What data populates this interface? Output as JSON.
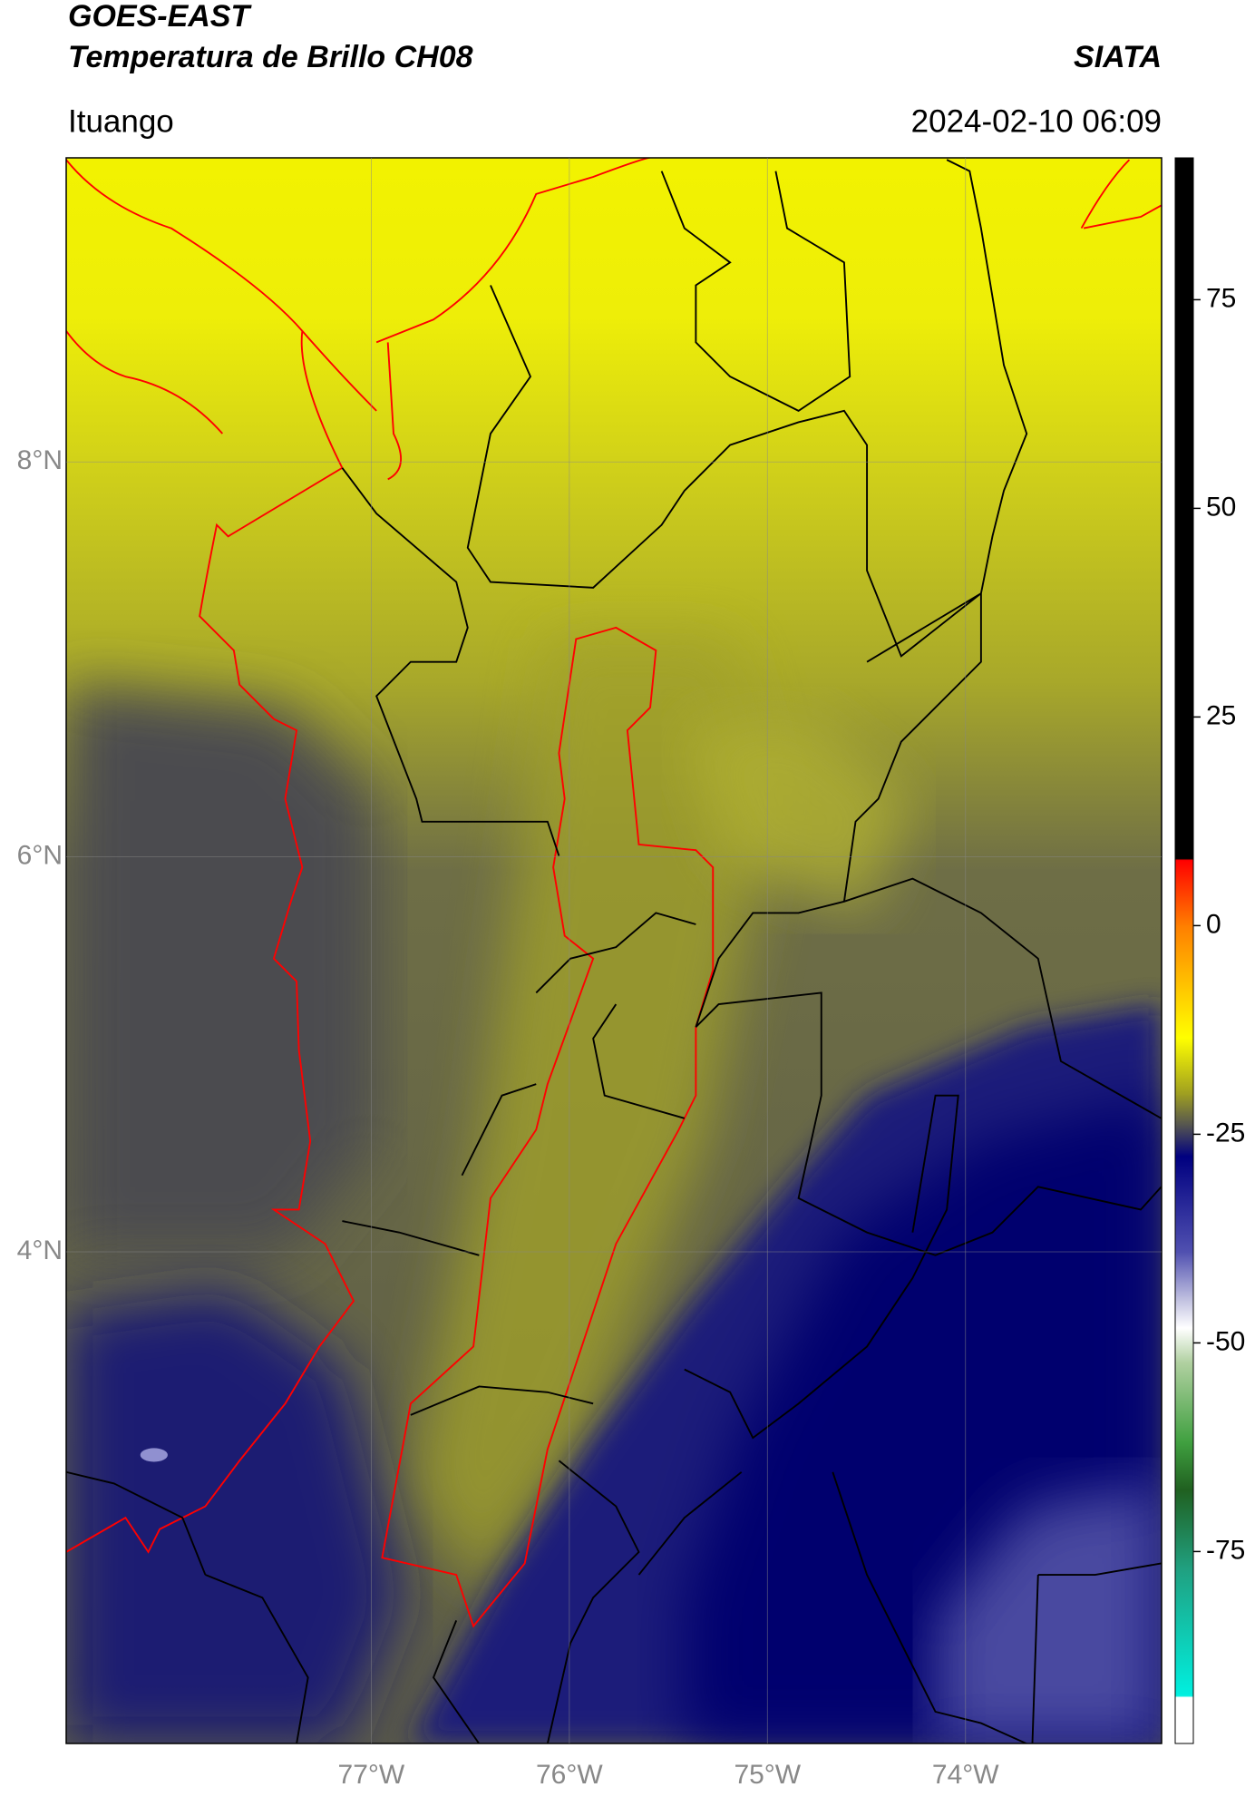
{
  "header": {
    "title": "GOES-EAST",
    "subtitle": "Temperatura de Brillo CH08",
    "source": "SIATA",
    "location": "Ituango",
    "datetime": "2024-02-10 06:09"
  },
  "map": {
    "latlim": [
      1.51,
      9.54
    ],
    "lonlim": [
      -78.54,
      -73.01
    ],
    "grid": true,
    "lat_ticks": [
      {
        "value": 8,
        "label": "8°N"
      },
      {
        "value": 6,
        "label": "6°N"
      },
      {
        "value": 4,
        "label": "4°N"
      }
    ],
    "lon_ticks": [
      {
        "value": -77,
        "label": "77°W"
      },
      {
        "value": -76,
        "label": "76°W"
      },
      {
        "value": -75,
        "label": "75°W"
      },
      {
        "value": -74,
        "label": "74°W"
      }
    ]
  },
  "colorbar": {
    "lim": [
      -98,
      92
    ],
    "ticks": [
      75,
      50,
      25,
      0,
      -25,
      -50,
      -75
    ]
  }
}
